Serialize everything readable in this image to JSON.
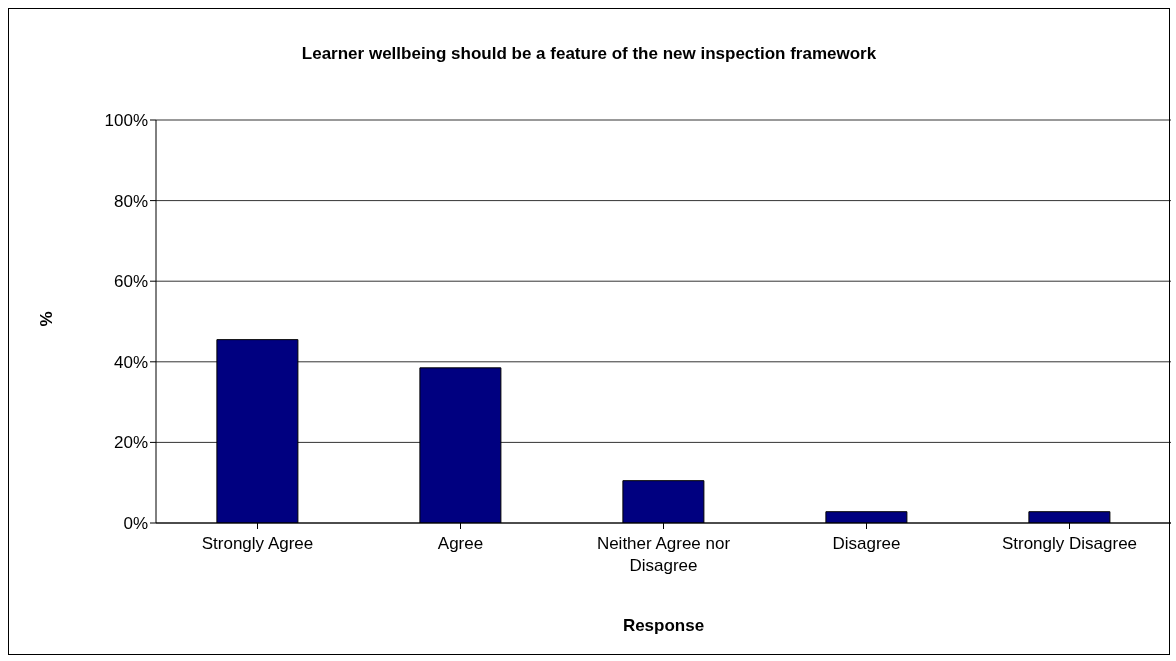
{
  "chart_data": {
    "type": "bar",
    "title": "Learner wellbeing should be a feature of the new inspection framework",
    "xlabel": "Response",
    "ylabel": "%",
    "categories": [
      "Strongly Agree",
      "Agree",
      "Neither Agree nor Disagree",
      "Disagree",
      "Strongly Disagree"
    ],
    "values": [
      45.5,
      38.5,
      10.5,
      2.8,
      2.8
    ],
    "color": "#000080",
    "ylim": [
      0,
      100
    ],
    "yticks": [
      {
        "value": 0,
        "label": "0%"
      },
      {
        "value": 20,
        "label": "20%"
      },
      {
        "value": 40,
        "label": "40%"
      },
      {
        "value": 60,
        "label": "60%"
      },
      {
        "value": 80,
        "label": "80%"
      },
      {
        "value": 100,
        "label": "100%"
      }
    ],
    "grid": "y",
    "legend": false
  }
}
